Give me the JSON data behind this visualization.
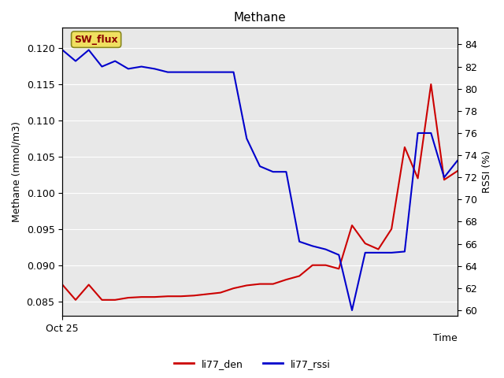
{
  "title": "Methane",
  "ylabel_left": "Methane (mmol/m3)",
  "ylabel_right": "RSSI (%)",
  "xlabel": "Time",
  "xlim": [
    0,
    30
  ],
  "ylim_left": [
    0.083,
    0.1228
  ],
  "ylim_right": [
    59.5,
    85.5
  ],
  "yticks_left": [
    0.085,
    0.09,
    0.095,
    0.1,
    0.105,
    0.11,
    0.115,
    0.12
  ],
  "yticks_right": [
    60,
    62,
    64,
    66,
    68,
    70,
    72,
    74,
    76,
    78,
    80,
    82,
    84
  ],
  "x_tick_pos": 0,
  "x_tick_label": "Oct 25",
  "bg_color": "#e8e8e8",
  "annotation_text": "SW_flux",
  "annotation_bg": "#f0e060",
  "annotation_border": "#888820",
  "line_red_color": "#cc0000",
  "line_blue_color": "#0000cc",
  "legend_red": "li77_den",
  "legend_blue": "li77_rssi",
  "li77_den_x": [
    0,
    1,
    2,
    3,
    4,
    5,
    6,
    7,
    8,
    9,
    10,
    11,
    12,
    13,
    14,
    15,
    16,
    17,
    18,
    19,
    20,
    21,
    22,
    23,
    24,
    25,
    26,
    27,
    28,
    29,
    30
  ],
  "li77_den_y": [
    0.0873,
    0.0852,
    0.0873,
    0.0852,
    0.0852,
    0.0855,
    0.0856,
    0.0856,
    0.0857,
    0.0857,
    0.0858,
    0.086,
    0.0862,
    0.0868,
    0.0872,
    0.0874,
    0.0874,
    0.088,
    0.0885,
    0.09,
    0.09,
    0.0895,
    0.0955,
    0.093,
    0.0922,
    0.095,
    0.1063,
    0.102,
    0.115,
    0.1018,
    0.103
  ],
  "li77_rssi_x": [
    0,
    1,
    2,
    3,
    4,
    5,
    6,
    7,
    8,
    9,
    10,
    11,
    12,
    13,
    14,
    15,
    16,
    17,
    18,
    19,
    20,
    21,
    22,
    23,
    24,
    25,
    26,
    27,
    28,
    29,
    30
  ],
  "li77_rssi_y": [
    83.5,
    82.5,
    83.5,
    82.0,
    82.5,
    81.8,
    82.0,
    81.8,
    81.5,
    81.5,
    81.5,
    81.5,
    81.5,
    81.5,
    75.5,
    73.0,
    72.5,
    72.5,
    66.2,
    65.8,
    65.5,
    65.0,
    60.0,
    65.2,
    65.2,
    65.2,
    65.3,
    76.0,
    76.0,
    72.0,
    73.5
  ],
  "grid_color": "white",
  "grid_linewidth": 0.8,
  "line_linewidth": 1.5,
  "title_fontsize": 11,
  "label_fontsize": 9,
  "tick_fontsize": 9,
  "legend_fontsize": 9
}
